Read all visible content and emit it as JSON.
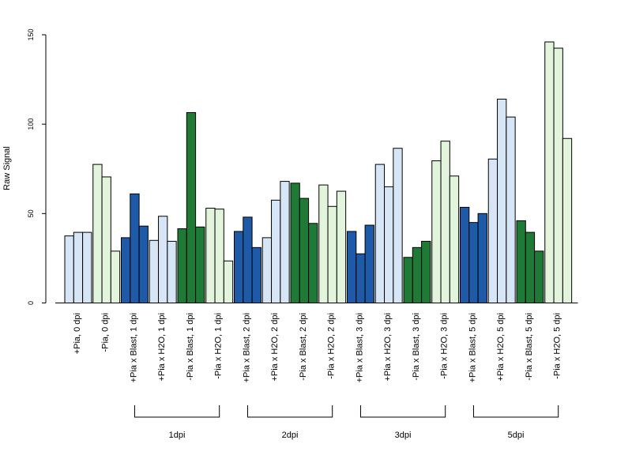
{
  "chart_data": {
    "type": "bar",
    "title": "",
    "xlabel": "",
    "ylabel": "Raw Signal",
    "ylim": [
      0,
      150
    ],
    "yticks": [
      0,
      50,
      100,
      150
    ],
    "grid": false,
    "legend": "none",
    "colors": {
      "plus_blast": "#1f5aa8",
      "plus_h2o": "#d6e6f6",
      "minus_blast": "#1f7a36",
      "minus_h2o": "#e2f4dc",
      "bar_border": "#000000"
    },
    "groups": [
      {
        "label": "+Pia, 0 dpi",
        "color_key": "plus_h2o",
        "values": [
          37.5,
          39.5,
          39.5
        ]
      },
      {
        "label": "-Pia, 0 dpi",
        "color_key": "minus_h2o",
        "values": [
          77.5,
          70.5,
          29
        ]
      },
      {
        "label": "+Pia x Blast, 1 dpi",
        "color_key": "plus_blast",
        "values": [
          36.5,
          61,
          43
        ]
      },
      {
        "label": "+Pia x H2O, 1 dpi",
        "color_key": "plus_h2o",
        "values": [
          35,
          48.5,
          34.5
        ]
      },
      {
        "label": "-Pia x Blast, 1 dpi",
        "color_key": "minus_blast",
        "values": [
          41.5,
          106.5,
          42.5
        ]
      },
      {
        "label": "-Pia x H2O, 1 dpi",
        "color_key": "minus_h2o",
        "values": [
          53,
          52.5,
          23.5
        ]
      },
      {
        "label": "+Pia x Blast, 2 dpi",
        "color_key": "plus_blast",
        "values": [
          40,
          48,
          31
        ]
      },
      {
        "label": "+Pia x H2O, 2 dpi",
        "color_key": "plus_h2o",
        "values": [
          36.5,
          57.5,
          68
        ]
      },
      {
        "label": "-Pia x Blast, 2 dpi",
        "color_key": "minus_blast",
        "values": [
          67,
          58.5,
          44.5
        ]
      },
      {
        "label": "-Pia x H2O, 2 dpi",
        "color_key": "minus_h2o",
        "values": [
          66,
          54,
          62.5
        ]
      },
      {
        "label": "+Pia x Blast, 3 dpi",
        "color_key": "plus_blast",
        "values": [
          40,
          27.5,
          43.5
        ]
      },
      {
        "label": "+Pia x H2O, 3 dpi",
        "color_key": "plus_h2o",
        "values": [
          77.5,
          65,
          86.5
        ]
      },
      {
        "label": "-Pia x Blast, 3 dpi",
        "color_key": "minus_blast",
        "values": [
          25.5,
          31,
          34.5
        ]
      },
      {
        "label": "-Pia x H2O, 3 dpi",
        "color_key": "minus_h2o",
        "values": [
          79.5,
          90.5,
          71
        ]
      },
      {
        "label": "+Pia x Blast, 5 dpi",
        "color_key": "plus_blast",
        "values": [
          53.5,
          45,
          50
        ]
      },
      {
        "label": "+Pia x H2O, 5 dpi",
        "color_key": "plus_h2o",
        "values": [
          80.5,
          114,
          104
        ]
      },
      {
        "label": "-Pia x Blast, 5 dpi",
        "color_key": "minus_blast",
        "values": [
          46,
          39.5,
          29
        ]
      },
      {
        "label": "-Pia x H2O, 5 dpi",
        "color_key": "minus_h2o",
        "values": [
          146,
          142.5,
          92
        ]
      }
    ],
    "brackets": [
      {
        "label": "1dpi",
        "start_group": 2,
        "end_group": 5
      },
      {
        "label": "2dpi",
        "start_group": 6,
        "end_group": 9
      },
      {
        "label": "3dpi",
        "start_group": 10,
        "end_group": 13
      },
      {
        "label": "5dpi",
        "start_group": 14,
        "end_group": 17
      }
    ]
  }
}
